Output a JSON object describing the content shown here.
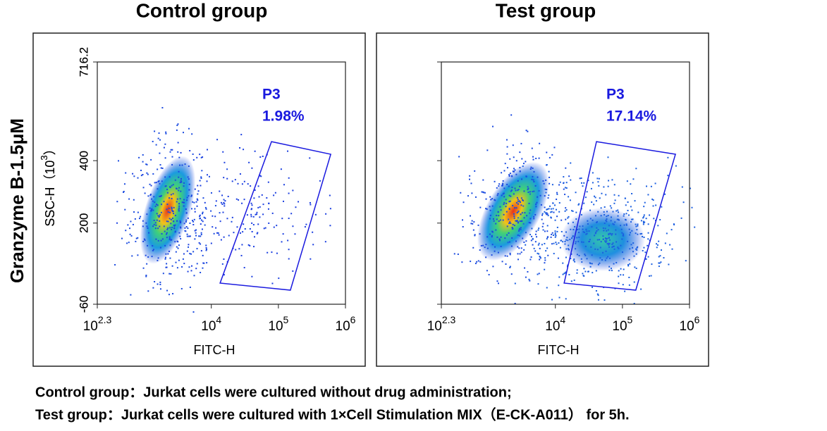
{
  "side_label": "Granzyme B-1.5μM",
  "chart_data": [
    {
      "type": "scatter",
      "title": "Control group",
      "x_label": "FITC-H",
      "y_label": "SSC-H（10",
      "y_label_exponent": "3",
      "y_label_end": "）",
      "xscale": "log",
      "xlim": [
        199.53,
        1000000
      ],
      "xticks": [
        {
          "value": 199.53,
          "label": "10",
          "exponent": "2.3"
        },
        {
          "value": 10000,
          "label": "10",
          "exponent": "4"
        },
        {
          "value": 100000,
          "label": "10",
          "exponent": "5"
        },
        {
          "value": 1000000,
          "label": "10",
          "exponent": "6"
        }
      ],
      "ylim": [
        -60,
        716.2
      ],
      "yticks": [
        -60,
        200,
        400,
        716.2
      ],
      "gate": {
        "name": "P3",
        "value": 1.98,
        "value_label": "1.98%",
        "color": "#1a1adf",
        "x": [
          78900,
          603000,
          151000,
          13500
        ],
        "y": [
          461,
          420.6,
          -14.9,
          7.7
        ]
      }
    },
    {
      "type": "scatter",
      "title": "Test group",
      "x_label": "FITC-H",
      "y_label": "SSC-H（10",
      "y_label_exponent": "3",
      "y_label_end": "）",
      "xscale": "log",
      "xlim": [
        199.53,
        1000000
      ],
      "xticks": [
        {
          "value": 199.53,
          "label": "10",
          "exponent": "2.3"
        },
        {
          "value": 10000,
          "label": "10",
          "exponent": "4"
        },
        {
          "value": 100000,
          "label": "10",
          "exponent": "5"
        },
        {
          "value": 1000000,
          "label": "10",
          "exponent": "6"
        }
      ],
      "ylim": [
        -60,
        716.2
      ],
      "yticks": [
        -60,
        200,
        400,
        716.2
      ],
      "gate": {
        "name": "P3",
        "value": 17.14,
        "value_label": "17.14%",
        "color": "#1a1adf",
        "x": [
          41000,
          617000,
          158000,
          13500
        ],
        "y": [
          461,
          420.6,
          -14.9,
          7.7
        ]
      }
    }
  ],
  "captions": [
    "Control group：Jurkat cells were cultured without drug administration;",
    "Test group：Jurkat cells were cultured with 1×Cell Stimulation MIX（E-CK-A011） for 5h."
  ]
}
